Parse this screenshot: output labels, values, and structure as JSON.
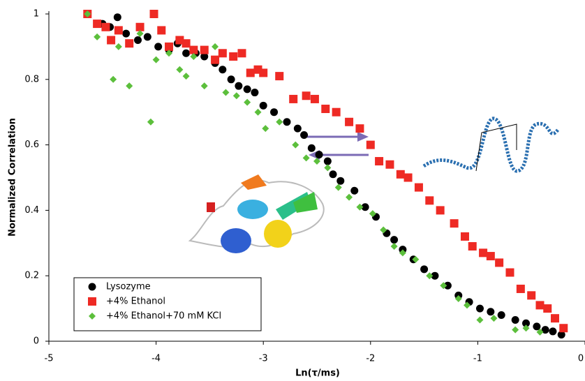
{
  "chart_data": {
    "type": "scatter",
    "x_label": "Ln(τ/ms)",
    "y_label": "Normalized Correlation",
    "xlim": [
      -5,
      0
    ],
    "ylim": [
      0,
      1
    ],
    "xticks": [
      -5,
      -4,
      -3,
      -2,
      -1,
      0
    ],
    "yticks": [
      0,
      0.2,
      0.4,
      0.6,
      0.8,
      1
    ],
    "grid": false,
    "legend_position": "lower left",
    "series": [
      {
        "name": "Lysozyme",
        "color": "#000000",
        "marker": "circle",
        "x": [
          -4.64,
          -4.5,
          -4.43,
          -4.36,
          -4.28,
          -4.17,
          -4.08,
          -3.98,
          -3.88,
          -3.8,
          -3.72,
          -3.63,
          -3.55,
          -3.45,
          -3.38,
          -3.3,
          -3.23,
          -3.15,
          -3.08,
          -3.0,
          -2.9,
          -2.78,
          -2.68,
          -2.62,
          -2.55,
          -2.48,
          -2.4,
          -2.35,
          -2.28,
          -2.15,
          -2.05,
          -1.95,
          -1.85,
          -1.78,
          -1.7,
          -1.6,
          -1.5,
          -1.4,
          -1.28,
          -1.18,
          -1.08,
          -0.98,
          -0.88,
          -0.78,
          -0.65,
          -0.55,
          -0.45,
          -0.37,
          -0.3,
          -0.22
        ],
        "values": [
          1.0,
          0.97,
          0.96,
          0.99,
          0.94,
          0.92,
          0.93,
          0.9,
          0.89,
          0.91,
          0.88,
          0.88,
          0.87,
          0.85,
          0.83,
          0.8,
          0.78,
          0.77,
          0.76,
          0.72,
          0.7,
          0.67,
          0.65,
          0.63,
          0.59,
          0.57,
          0.55,
          0.51,
          0.49,
          0.46,
          0.41,
          0.38,
          0.33,
          0.31,
          0.28,
          0.25,
          0.22,
          0.2,
          0.17,
          0.14,
          0.12,
          0.1,
          0.09,
          0.08,
          0.065,
          0.055,
          0.045,
          0.035,
          0.03,
          0.02
        ]
      },
      {
        "name": "+4% Ethanol",
        "color": "#ee2a24",
        "marker": "square",
        "x": [
          -4.64,
          -4.55,
          -4.47,
          -4.42,
          -4.35,
          -4.25,
          -4.15,
          -4.02,
          -3.95,
          -3.88,
          -3.78,
          -3.72,
          -3.65,
          -3.55,
          -3.45,
          -3.38,
          -3.28,
          -3.2,
          -3.12,
          -3.05,
          -3.0,
          -2.85,
          -2.72,
          -2.6,
          -2.52,
          -2.42,
          -2.32,
          -2.2,
          -2.1,
          -2.0,
          -1.92,
          -1.82,
          -1.72,
          -1.65,
          -1.55,
          -1.45,
          -1.35,
          -1.22,
          -1.12,
          -1.05,
          -0.95,
          -0.88,
          -0.8,
          -0.7,
          -0.6,
          -0.5,
          -0.42,
          -0.35,
          -0.28,
          -0.2
        ],
        "values": [
          1.0,
          0.97,
          0.96,
          0.92,
          0.95,
          0.91,
          0.96,
          1.0,
          0.95,
          0.9,
          0.92,
          0.91,
          0.89,
          0.89,
          0.86,
          0.88,
          0.87,
          0.88,
          0.82,
          0.83,
          0.82,
          0.81,
          0.74,
          0.75,
          0.74,
          0.71,
          0.7,
          0.67,
          0.65,
          0.6,
          0.55,
          0.54,
          0.51,
          0.5,
          0.47,
          0.43,
          0.4,
          0.36,
          0.32,
          0.29,
          0.27,
          0.26,
          0.24,
          0.21,
          0.16,
          0.14,
          0.11,
          0.1,
          0.07,
          0.04
        ]
      },
      {
        "name": "+4% Ethanol+70 mM KCl",
        "color": "#5cbf3c",
        "marker": "diamond",
        "x": [
          -4.64,
          -4.55,
          -4.4,
          -4.35,
          -4.25,
          -4.15,
          -4.05,
          -4.0,
          -3.88,
          -3.78,
          -3.72,
          -3.65,
          -3.55,
          -3.45,
          -3.35,
          -3.25,
          -3.15,
          -3.05,
          -2.98,
          -2.85,
          -2.7,
          -2.6,
          -2.5,
          -2.4,
          -2.3,
          -2.2,
          -2.1,
          -1.98,
          -1.88,
          -1.78,
          -1.7,
          -1.58,
          -1.45,
          -1.32,
          -1.18,
          -1.1,
          -0.98,
          -0.85,
          -0.65,
          -0.55,
          -0.42
        ],
        "values": [
          1.0,
          0.93,
          0.8,
          0.9,
          0.78,
          0.94,
          0.67,
          0.86,
          0.88,
          0.83,
          0.81,
          0.87,
          0.78,
          0.9,
          0.76,
          0.75,
          0.73,
          0.7,
          0.65,
          0.67,
          0.6,
          0.56,
          0.55,
          0.53,
          0.47,
          0.44,
          0.41,
          0.39,
          0.34,
          0.29,
          0.27,
          0.25,
          0.2,
          0.17,
          0.13,
          0.11,
          0.065,
          0.07,
          0.035,
          0.04,
          0.028
        ]
      }
    ]
  }
}
